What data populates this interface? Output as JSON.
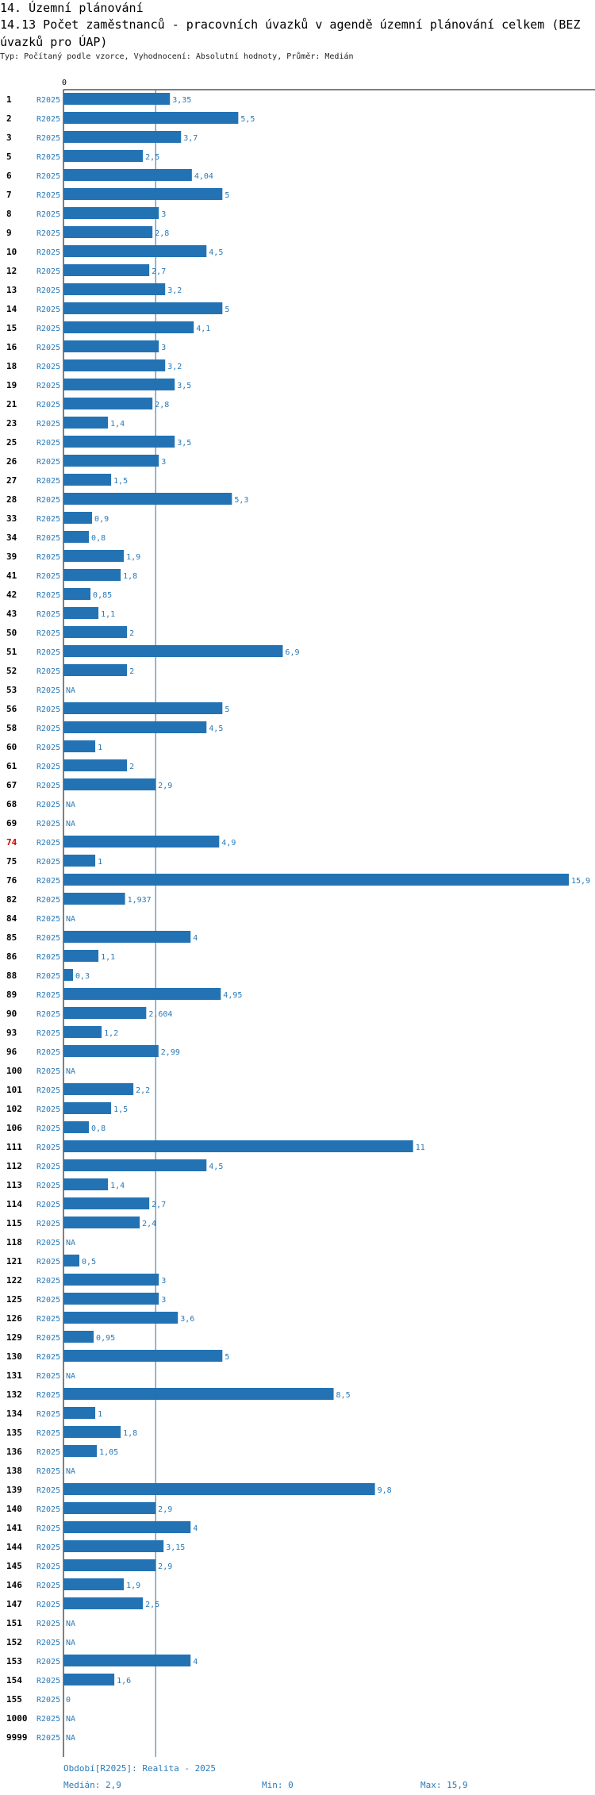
{
  "header": {
    "section": "14. Územní plánování",
    "title": "14.13 Počet zaměstnanců - pracovních úvazků v agendě územní plánování celkem (BEZ úvazků pro ÚAP)",
    "subtitle": "Typ: Počítaný podle vzorce, Vyhodnocení: Absolutní hodnoty, Průměr: Medián"
  },
  "chart_data": {
    "type": "bar",
    "orientation": "horizontal",
    "axis_zero_label": "0",
    "period_label": "R2025",
    "highlight_id": "74",
    "highlight_color": "#cc0000",
    "bar_color": "#2373b4",
    "label_color": "#2a7ab8",
    "median": 2.9,
    "xlim": [
      0,
      15.9
    ],
    "rows": [
      {
        "id": "1",
        "value": 3.35,
        "label": "3,35"
      },
      {
        "id": "2",
        "value": 5.5,
        "label": "5,5"
      },
      {
        "id": "3",
        "value": 3.7,
        "label": "3,7"
      },
      {
        "id": "5",
        "value": 2.5,
        "label": "2,5"
      },
      {
        "id": "6",
        "value": 4.04,
        "label": "4,04"
      },
      {
        "id": "7",
        "value": 5,
        "label": "5"
      },
      {
        "id": "8",
        "value": 3,
        "label": "3"
      },
      {
        "id": "9",
        "value": 2.8,
        "label": "2,8"
      },
      {
        "id": "10",
        "value": 4.5,
        "label": "4,5"
      },
      {
        "id": "12",
        "value": 2.7,
        "label": "2,7"
      },
      {
        "id": "13",
        "value": 3.2,
        "label": "3,2"
      },
      {
        "id": "14",
        "value": 5,
        "label": "5"
      },
      {
        "id": "15",
        "value": 4.1,
        "label": "4,1"
      },
      {
        "id": "16",
        "value": 3,
        "label": "3"
      },
      {
        "id": "18",
        "value": 3.2,
        "label": "3,2"
      },
      {
        "id": "19",
        "value": 3.5,
        "label": "3,5"
      },
      {
        "id": "21",
        "value": 2.8,
        "label": "2,8"
      },
      {
        "id": "23",
        "value": 1.4,
        "label": "1,4"
      },
      {
        "id": "25",
        "value": 3.5,
        "label": "3,5"
      },
      {
        "id": "26",
        "value": 3,
        "label": "3"
      },
      {
        "id": "27",
        "value": 1.5,
        "label": "1,5"
      },
      {
        "id": "28",
        "value": 5.3,
        "label": "5,3"
      },
      {
        "id": "33",
        "value": 0.9,
        "label": "0,9"
      },
      {
        "id": "34",
        "value": 0.8,
        "label": "0,8"
      },
      {
        "id": "39",
        "value": 1.9,
        "label": "1,9"
      },
      {
        "id": "41",
        "value": 1.8,
        "label": "1,8"
      },
      {
        "id": "42",
        "value": 0.85,
        "label": "0,85"
      },
      {
        "id": "43",
        "value": 1.1,
        "label": "1,1"
      },
      {
        "id": "50",
        "value": 2,
        "label": "2"
      },
      {
        "id": "51",
        "value": 6.9,
        "label": "6,9"
      },
      {
        "id": "52",
        "value": 2,
        "label": "2"
      },
      {
        "id": "53",
        "value": null,
        "label": "NA"
      },
      {
        "id": "56",
        "value": 5,
        "label": "5"
      },
      {
        "id": "58",
        "value": 4.5,
        "label": "4,5"
      },
      {
        "id": "60",
        "value": 1,
        "label": "1"
      },
      {
        "id": "61",
        "value": 2,
        "label": "2"
      },
      {
        "id": "67",
        "value": 2.9,
        "label": "2,9"
      },
      {
        "id": "68",
        "value": null,
        "label": "NA"
      },
      {
        "id": "69",
        "value": null,
        "label": "NA"
      },
      {
        "id": "74",
        "value": 4.9,
        "label": "4,9"
      },
      {
        "id": "75",
        "value": 1,
        "label": "1"
      },
      {
        "id": "76",
        "value": 15.9,
        "label": "15,9"
      },
      {
        "id": "82",
        "value": 1.937,
        "label": "1,937"
      },
      {
        "id": "84",
        "value": null,
        "label": "NA"
      },
      {
        "id": "85",
        "value": 4,
        "label": "4"
      },
      {
        "id": "86",
        "value": 1.1,
        "label": "1,1"
      },
      {
        "id": "88",
        "value": 0.3,
        "label": "0,3"
      },
      {
        "id": "89",
        "value": 4.95,
        "label": "4,95"
      },
      {
        "id": "90",
        "value": 2.604,
        "label": "2,604"
      },
      {
        "id": "93",
        "value": 1.2,
        "label": "1,2"
      },
      {
        "id": "96",
        "value": 2.99,
        "label": "2,99"
      },
      {
        "id": "100",
        "value": null,
        "label": "NA"
      },
      {
        "id": "101",
        "value": 2.2,
        "label": "2,2"
      },
      {
        "id": "102",
        "value": 1.5,
        "label": "1,5"
      },
      {
        "id": "106",
        "value": 0.8,
        "label": "0,8"
      },
      {
        "id": "111",
        "value": 11,
        "label": "11"
      },
      {
        "id": "112",
        "value": 4.5,
        "label": "4,5"
      },
      {
        "id": "113",
        "value": 1.4,
        "label": "1,4"
      },
      {
        "id": "114",
        "value": 2.7,
        "label": "2,7"
      },
      {
        "id": "115",
        "value": 2.4,
        "label": "2,4"
      },
      {
        "id": "118",
        "value": null,
        "label": "NA"
      },
      {
        "id": "121",
        "value": 0.5,
        "label": "0,5"
      },
      {
        "id": "122",
        "value": 3,
        "label": "3"
      },
      {
        "id": "125",
        "value": 3,
        "label": "3"
      },
      {
        "id": "126",
        "value": 3.6,
        "label": "3,6"
      },
      {
        "id": "129",
        "value": 0.95,
        "label": "0,95"
      },
      {
        "id": "130",
        "value": 5,
        "label": "5"
      },
      {
        "id": "131",
        "value": null,
        "label": "NA"
      },
      {
        "id": "132",
        "value": 8.5,
        "label": "8,5"
      },
      {
        "id": "134",
        "value": 1,
        "label": "1"
      },
      {
        "id": "135",
        "value": 1.8,
        "label": "1,8"
      },
      {
        "id": "136",
        "value": 1.05,
        "label": "1,05"
      },
      {
        "id": "138",
        "value": null,
        "label": "NA"
      },
      {
        "id": "139",
        "value": 9.8,
        "label": "9,8"
      },
      {
        "id": "140",
        "value": 2.9,
        "label": "2,9"
      },
      {
        "id": "141",
        "value": 4,
        "label": "4"
      },
      {
        "id": "144",
        "value": 3.15,
        "label": "3,15"
      },
      {
        "id": "145",
        "value": 2.9,
        "label": "2,9"
      },
      {
        "id": "146",
        "value": 1.9,
        "label": "1,9"
      },
      {
        "id": "147",
        "value": 2.5,
        "label": "2,5"
      },
      {
        "id": "151",
        "value": null,
        "label": "NA"
      },
      {
        "id": "152",
        "value": null,
        "label": "NA"
      },
      {
        "id": "153",
        "value": 4,
        "label": "4"
      },
      {
        "id": "154",
        "value": 1.6,
        "label": "1,6"
      },
      {
        "id": "155",
        "value": 0,
        "label": "0"
      },
      {
        "id": "1000",
        "value": null,
        "label": "NA"
      },
      {
        "id": "9999",
        "value": null,
        "label": "NA"
      }
    ]
  },
  "footer": {
    "period": "Období[R2025]: Realita - 2025",
    "median": "Medián: 2,9",
    "min": "Min: 0",
    "max": "Max: 15,9"
  }
}
